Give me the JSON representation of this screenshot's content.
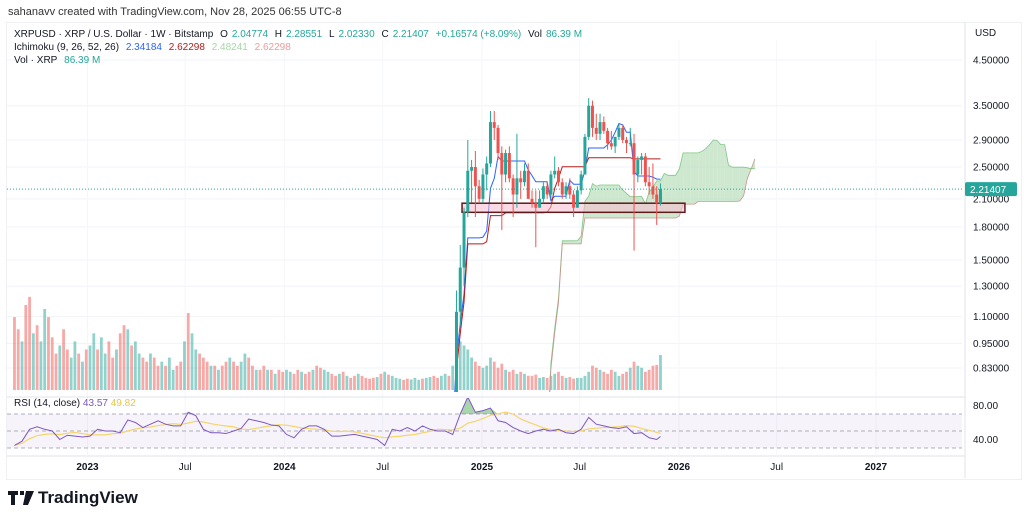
{
  "credit": "sahanavv created with TradingView.com, Nov 28, 2025 06:55 UTC-8",
  "legend": {
    "symbol": "XRPUSD · XRP / U.S. Dollar · 1W · Bitstamp",
    "o_label": "O",
    "o": "2.04774",
    "h_label": "H",
    "h": "2.28551",
    "l_label": "L",
    "l": "2.02330",
    "c_label": "C",
    "c": "2.21407",
    "change": "+0.16574 (+8.09%)",
    "vol_label": "Vol",
    "vol": "86.39 M",
    "ichimoku_label": "Ichimoku (9, 26, 52, 26)",
    "ichimoku_values": [
      "2.34184",
      "2.62298",
      "2.48241",
      "2.62298"
    ],
    "vol_indicator_label": "Vol · XRP",
    "vol_indicator_value": "86.39 M"
  },
  "rsi_legend": {
    "label": "RSI (14, close)",
    "value": "43.57",
    "ma": "49.82"
  },
  "currency": "USD",
  "logo_text": "TradingView",
  "colors": {
    "up": "#26a69a",
    "down": "#ef5350",
    "tenkan": "#2962ff",
    "kijun": "#b71c1c",
    "cloud_up": "#a5d6a7",
    "cloud_down": "#ef9a9a",
    "rsi": "#7e57c2",
    "rsi_ma": "#f5d56a"
  },
  "chart_data": [
    {
      "type": "candlestick",
      "scale": "log",
      "price_ticks": [
        "4.50000",
        "3.50000",
        "2.90000",
        "2.50000",
        "2.10000",
        "1.80000",
        "1.50000",
        "1.30000",
        "1.10000",
        "0.95000",
        "0.83000"
      ],
      "time_ticks": [
        {
          "label": "2023",
          "date": "2023-01-01",
          "bold": true
        },
        {
          "label": "Jul",
          "date": "2023-07-01"
        },
        {
          "label": "2024",
          "date": "2024-01-01",
          "bold": true
        },
        {
          "label": "Jul",
          "date": "2024-07-01"
        },
        {
          "label": "2025",
          "date": "2025-01-01",
          "bold": true
        },
        {
          "label": "Jul",
          "date": "2025-07-01"
        },
        {
          "label": "2026",
          "date": "2026-01-01",
          "bold": true
        },
        {
          "label": "Jul",
          "date": "2026-07-01"
        },
        {
          "label": "2027",
          "date": "2027-01-01",
          "bold": true
        }
      ],
      "last_price": "2.21407",
      "candles_start": "2024-06-03",
      "interval_days": 7,
      "ohlc": [
        [
          0.5,
          0.52,
          0.48,
          0.49
        ],
        [
          0.49,
          0.5,
          0.46,
          0.48
        ],
        [
          0.48,
          0.5,
          0.46,
          0.49
        ],
        [
          0.49,
          0.49,
          0.46,
          0.47
        ],
        [
          0.47,
          0.49,
          0.45,
          0.48
        ],
        [
          0.48,
          0.49,
          0.38,
          0.43
        ],
        [
          0.43,
          0.48,
          0.42,
          0.47
        ],
        [
          0.47,
          0.55,
          0.46,
          0.54
        ],
        [
          0.54,
          0.64,
          0.53,
          0.6
        ],
        [
          0.6,
          0.64,
          0.56,
          0.57
        ],
        [
          0.57,
          0.6,
          0.43,
          0.56
        ],
        [
          0.56,
          0.64,
          0.55,
          0.57
        ],
        [
          0.57,
          0.6,
          0.55,
          0.57
        ],
        [
          0.57,
          0.6,
          0.55,
          0.59
        ],
        [
          0.59,
          0.6,
          0.54,
          0.55
        ],
        [
          0.55,
          0.59,
          0.55,
          0.58
        ],
        [
          0.58,
          0.66,
          0.57,
          0.59
        ],
        [
          0.59,
          0.61,
          0.56,
          0.58
        ],
        [
          0.58,
          0.62,
          0.51,
          0.53
        ],
        [
          0.53,
          0.55,
          0.52,
          0.54
        ],
        [
          0.54,
          0.56,
          0.53,
          0.55
        ],
        [
          0.55,
          0.56,
          0.49,
          0.51
        ],
        [
          0.51,
          0.66,
          0.5,
          0.65
        ],
        [
          0.65,
          1.27,
          0.62,
          1.13
        ],
        [
          1.13,
          1.63,
          1.05,
          1.44
        ],
        [
          1.44,
          2.0,
          1.3,
          1.95
        ],
        [
          1.95,
          2.9,
          1.9,
          2.45
        ],
        [
          2.45,
          2.6,
          2.06,
          2.5
        ],
        [
          2.5,
          2.73,
          1.9,
          2.25
        ],
        [
          2.25,
          2.33,
          2.05,
          2.1
        ],
        [
          2.1,
          2.48,
          2.05,
          2.4
        ],
        [
          2.4,
          2.65,
          2.2,
          2.55
        ],
        [
          2.55,
          3.4,
          2.5,
          3.2
        ],
        [
          3.2,
          3.4,
          2.9,
          3.1
        ],
        [
          3.1,
          3.15,
          2.6,
          2.7
        ],
        [
          2.7,
          2.8,
          1.77,
          2.4
        ],
        [
          2.4,
          2.75,
          2.3,
          2.7
        ],
        [
          2.7,
          2.8,
          2.3,
          2.35
        ],
        [
          2.35,
          2.4,
          1.9,
          2.15
        ],
        [
          2.15,
          3.0,
          2.0,
          2.35
        ],
        [
          2.35,
          2.45,
          2.1,
          2.3
        ],
        [
          2.3,
          2.55,
          2.25,
          2.45
        ],
        [
          2.45,
          2.55,
          2.1,
          2.1
        ],
        [
          2.1,
          2.2,
          2.0,
          2.05
        ],
        [
          2.05,
          2.2,
          1.61,
          2.0
        ],
        [
          2.0,
          2.2,
          2.0,
          2.1
        ],
        [
          2.1,
          2.3,
          2.05,
          2.25
        ],
        [
          2.25,
          2.3,
          2.1,
          2.15
        ],
        [
          2.15,
          2.45,
          2.1,
          2.4
        ],
        [
          2.4,
          2.65,
          2.35,
          2.45
        ],
        [
          2.45,
          2.5,
          2.25,
          2.3
        ],
        [
          2.3,
          2.35,
          2.1,
          2.15
        ],
        [
          2.15,
          2.3,
          2.1,
          2.25
        ],
        [
          2.25,
          2.35,
          2.1,
          2.15
        ],
        [
          2.15,
          2.2,
          1.9,
          2.0
        ],
        [
          2.0,
          2.25,
          2.0,
          2.2
        ],
        [
          2.2,
          2.45,
          2.15,
          2.4
        ],
        [
          2.4,
          3.0,
          2.4,
          2.95
        ],
        [
          2.95,
          3.65,
          2.9,
          3.5
        ],
        [
          3.5,
          3.6,
          2.95,
          3.1
        ],
        [
          3.1,
          3.35,
          2.9,
          3.0
        ],
        [
          3.0,
          3.35,
          2.9,
          3.2
        ],
        [
          3.2,
          3.3,
          3.0,
          3.05
        ],
        [
          3.05,
          3.1,
          2.75,
          2.85
        ],
        [
          2.85,
          3.05,
          2.75,
          2.8
        ],
        [
          2.8,
          2.95,
          2.7,
          2.95
        ],
        [
          2.95,
          3.18,
          2.9,
          3.1
        ],
        [
          3.1,
          3.15,
          2.85,
          2.9
        ],
        [
          2.9,
          2.95,
          2.7,
          2.85
        ],
        [
          2.85,
          3.1,
          2.8,
          2.85
        ],
        [
          2.85,
          3.0,
          1.58,
          2.4
        ],
        [
          2.4,
          2.65,
          2.3,
          2.6
        ],
        [
          2.6,
          2.7,
          2.4,
          2.65
        ],
        [
          2.65,
          2.7,
          2.25,
          2.3
        ],
        [
          2.3,
          2.5,
          2.15,
          2.25
        ],
        [
          2.25,
          2.55,
          2.1,
          2.15
        ],
        [
          2.15,
          2.25,
          1.82,
          2.05
        ],
        [
          2.04774,
          2.28551,
          2.0233,
          2.21407
        ]
      ],
      "ichimoku": {
        "conversion": 9,
        "base": 26,
        "span_b": 52,
        "displacement": 26
      },
      "support_zone": {
        "from": "2024-11-25",
        "to": "2026-01-12",
        "low": 1.95,
        "high": 2.05
      }
    },
    {
      "type": "bar",
      "name": "Vol · XRP",
      "unit": "M",
      "start": "2022-08-15",
      "interval_days": 7,
      "values": [
        180,
        150,
        120,
        210,
        230,
        140,
        160,
        120,
        200,
        180,
        130,
        90,
        110,
        150,
        100,
        80,
        120,
        90,
        70,
        100,
        110,
        140,
        100,
        130,
        90,
        120,
        80,
        100,
        140,
        160,
        150,
        110,
        120,
        90,
        80,
        70,
        90,
        80,
        60,
        70,
        60,
        80,
        50,
        60,
        70,
        120,
        190,
        140,
        100,
        90,
        80,
        70,
        60,
        60,
        50,
        60,
        70,
        80,
        70,
        60,
        70,
        90,
        80,
        60,
        50,
        50,
        60,
        50,
        50,
        40,
        50,
        45,
        50,
        45,
        40,
        50,
        45,
        40,
        45,
        50,
        60,
        55,
        50,
        45,
        40,
        35,
        40,
        45,
        35,
        30,
        35,
        40,
        35,
        30,
        28,
        30,
        32,
        40,
        45,
        38,
        35,
        30,
        28,
        25,
        28,
        26,
        30,
        25,
        28,
        30,
        32,
        35,
        30,
        35,
        40,
        35,
        60,
        140,
        120,
        110,
        100,
        80,
        70,
        60,
        55,
        60,
        80,
        70,
        55,
        65,
        50,
        45,
        50,
        40,
        45,
        40,
        35,
        35,
        38,
        30,
        32,
        30,
        35,
        40,
        45,
        35,
        30,
        32,
        28,
        30,
        30,
        35,
        45,
        60,
        55,
        50,
        45,
        40,
        50,
        45,
        35,
        40,
        45,
        55,
        70,
        60,
        55,
        45,
        50,
        60,
        62,
        86.39
      ],
      "early_direction": "ddudduduudddudduududuuduuddudduduuddudduduudduduudddududdudduudduddududduudduddudduuddududdu"
    },
    {
      "type": "line",
      "name": "RSI (14, close)",
      "start": "2022-08-15",
      "interval_days": 14,
      "ylim": [
        0,
        100
      ],
      "ticks": [
        "80.00",
        "40.00"
      ],
      "bands": [
        70,
        50,
        30
      ],
      "values": [
        33,
        38,
        52,
        55,
        52,
        50,
        40,
        45,
        44,
        43,
        44,
        52,
        50,
        50,
        48,
        63,
        60,
        54,
        58,
        62,
        58,
        56,
        56,
        72,
        68,
        52,
        48,
        48,
        47,
        50,
        53,
        64,
        62,
        60,
        57,
        56,
        46,
        42,
        52,
        56,
        56,
        52,
        44,
        44,
        45,
        46,
        44,
        42,
        40,
        33,
        52,
        50,
        54,
        50,
        56,
        52,
        50,
        50,
        46,
        70,
        90,
        72,
        74,
        77,
        62,
        60,
        54,
        50,
        47,
        50,
        52,
        50,
        52,
        48,
        47,
        52,
        66,
        58,
        56,
        54,
        53,
        55,
        47,
        48,
        42,
        40,
        43.57
      ]
    }
  ]
}
